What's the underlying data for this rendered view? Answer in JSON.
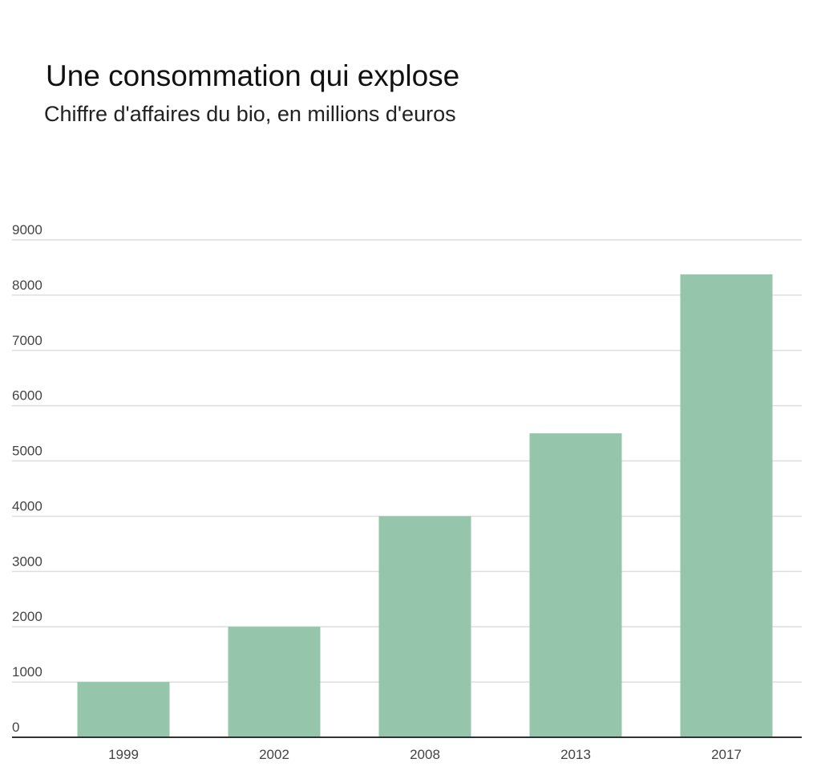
{
  "chart_data": {
    "type": "bar",
    "title": "Une consommation qui explose",
    "subtitle": "Chiffre d'affaires du bio, en millions d'euros",
    "categories": [
      "1999",
      "2002",
      "2008",
      "2013",
      "2017"
    ],
    "values": [
      1000,
      2000,
      4000,
      5500,
      8375
    ],
    "xlabel": "",
    "ylabel": "",
    "ylim": [
      0,
      9000
    ],
    "yticks": [
      "0",
      "1000",
      "2000",
      "3000",
      "4000",
      "5000",
      "6000",
      "7000",
      "8000",
      "9000"
    ],
    "grid": true,
    "bar_color": "#95c5ab"
  }
}
